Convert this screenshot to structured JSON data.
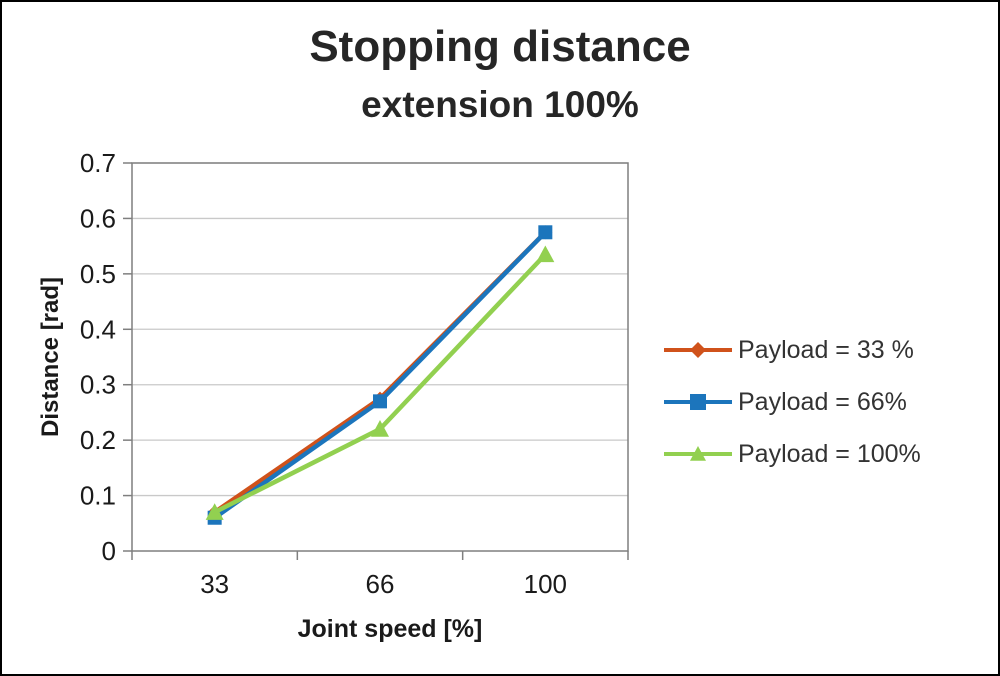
{
  "chart_data": {
    "type": "line",
    "title": "Stopping distance",
    "subtitle": "extension 100%",
    "xlabel": "Joint speed [%]",
    "ylabel": "Distance [rad]",
    "categories": [
      "33",
      "66",
      "100"
    ],
    "ylim": [
      0,
      0.7
    ],
    "ytick_step": 0.1,
    "ytick_labels": [
      "0",
      "0.1",
      "0.2",
      "0.3",
      "0.4",
      "0.5",
      "0.6",
      "0.7"
    ],
    "grid": true,
    "legend_position": "right",
    "axis_color": "#7f7f7f",
    "gridline_color": "#c9c9c9",
    "text_color": "#1a1a1a",
    "series": [
      {
        "name": "Payload = 33 %",
        "marker": "diamond",
        "color": "#d0521b",
        "values": [
          0.07,
          0.275,
          0.575
        ]
      },
      {
        "name": "Payload =  66%",
        "marker": "square",
        "color": "#1c75bc",
        "values": [
          0.06,
          0.27,
          0.575
        ]
      },
      {
        "name": "Payload =  100%",
        "marker": "triangle",
        "color": "#92d050",
        "values": [
          0.07,
          0.22,
          0.535
        ]
      }
    ]
  }
}
